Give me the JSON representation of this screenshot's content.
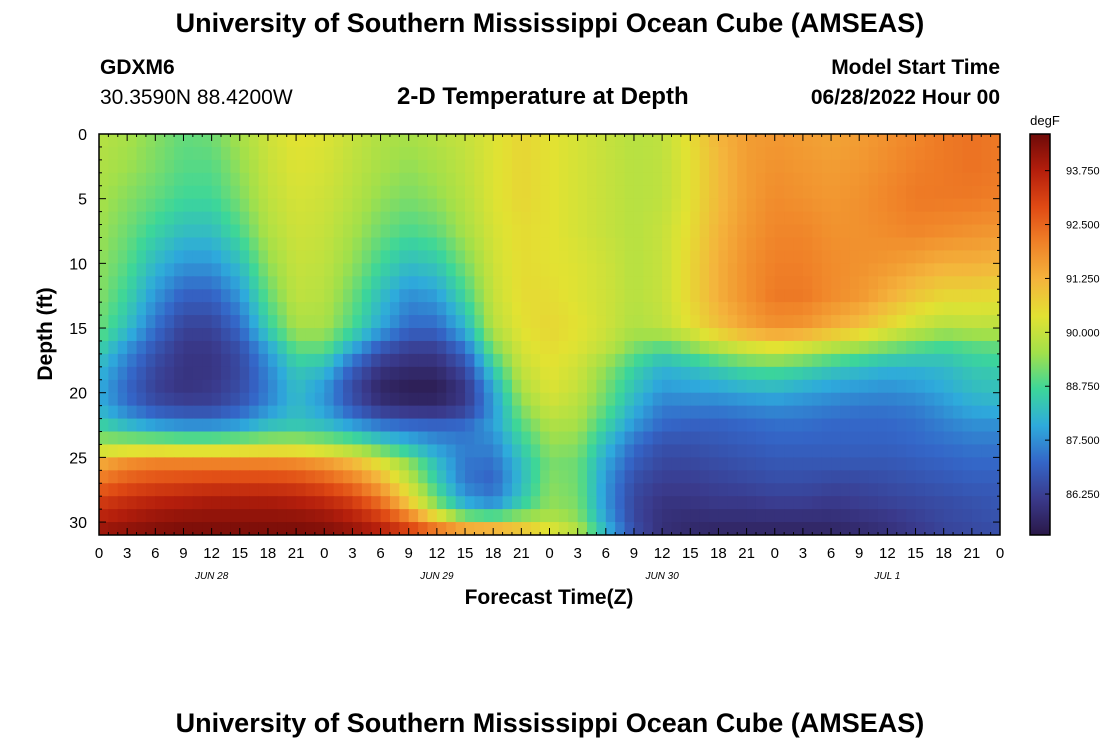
{
  "header": {
    "title": "University of Southern Mississippi Ocean Cube (AMSEAS)",
    "station_id": "GDXM6",
    "station_coords": "30.3590N  88.4200W",
    "subtitle": "2-D Temperature at Depth",
    "model_start_label": "Model Start Time",
    "model_start_value": "06/28/2022 Hour 00"
  },
  "footer": {
    "title": "University of Southern Mississippi Ocean Cube (AMSEAS)"
  },
  "chart_data": {
    "type": "heatmap",
    "title": "2-D Temperature at Depth",
    "xlabel": "Forecast Time(Z)",
    "ylabel": "Depth (ft)",
    "x_tick_labels": [
      "0",
      "3",
      "6",
      "9",
      "12",
      "15",
      "18",
      "21",
      "0",
      "3",
      "6",
      "9",
      "12",
      "15",
      "18",
      "21",
      "0",
      "3",
      "6",
      "9",
      "12",
      "15",
      "18",
      "21",
      "0",
      "3",
      "6",
      "9",
      "12",
      "15",
      "18",
      "21",
      "0"
    ],
    "x_day_labels": [
      "JUN 28",
      "JUN 29",
      "JUN 30",
      "JUL 1"
    ],
    "x_range_hours": [
      0,
      96
    ],
    "y_range_ft": [
      0,
      31
    ],
    "y_ticks": [
      0,
      5,
      10,
      15,
      20,
      25,
      30
    ],
    "colorbar": {
      "unit": "degF",
      "range": [
        85.3,
        94.6
      ],
      "tick_labels": [
        "93.750",
        "92.500",
        "91.250",
        "90.000",
        "88.750",
        "87.500",
        "86.250"
      ],
      "tick_values": [
        93.75,
        92.5,
        91.25,
        90.0,
        88.75,
        87.5,
        86.25
      ],
      "colors": [
        "#2a1848",
        "#3a3a8c",
        "#3466c8",
        "#2eaadc",
        "#3cd69a",
        "#a2e04a",
        "#e2e232",
        "#f4b43c",
        "#f08228",
        "#e04a14",
        "#b41e0c",
        "#6e0a08"
      ]
    },
    "depths_ft": [
      0,
      2.5,
      5,
      7.5,
      10,
      12.5,
      15,
      16.5,
      18,
      19.5,
      21,
      22.5,
      24,
      25.5,
      27,
      28.5,
      30,
      31
    ],
    "times_hr": [
      0,
      3,
      6,
      9,
      12,
      15,
      18,
      21,
      24,
      27,
      30,
      33,
      36,
      39,
      42,
      45,
      48,
      51,
      54,
      57,
      60,
      63,
      66,
      69,
      72,
      75,
      78,
      81,
      84,
      87,
      90,
      93,
      96
    ],
    "values_degF": [
      [
        89.8,
        89.6,
        89.3,
        89.0,
        89.1,
        89.6,
        90.1,
        90.4,
        90.3,
        90.0,
        89.7,
        89.6,
        89.8,
        90.0,
        90.3,
        90.6,
        90.4,
        90.2,
        90.0,
        89.8,
        89.9,
        90.5,
        91.2,
        91.6,
        91.7,
        91.6,
        91.5,
        91.6,
        91.8,
        92.0,
        92.2,
        92.3,
        92.2
      ],
      [
        89.7,
        89.5,
        89.2,
        88.9,
        88.9,
        89.4,
        90.0,
        90.3,
        90.2,
        89.9,
        89.6,
        89.4,
        89.6,
        89.9,
        90.3,
        90.6,
        90.4,
        90.2,
        90.0,
        89.8,
        89.9,
        90.4,
        91.1,
        91.6,
        91.8,
        91.7,
        91.6,
        91.7,
        91.9,
        92.1,
        92.2,
        92.3,
        92.2
      ],
      [
        89.6,
        89.3,
        89.0,
        88.7,
        88.7,
        89.2,
        89.9,
        90.2,
        90.1,
        89.8,
        89.4,
        89.2,
        89.4,
        89.8,
        90.3,
        90.6,
        90.4,
        90.2,
        90.0,
        89.8,
        89.9,
        90.4,
        91.1,
        91.6,
        91.9,
        91.8,
        91.7,
        91.8,
        92.0,
        92.2,
        92.2,
        92.2,
        92.1
      ],
      [
        89.5,
        89.1,
        88.6,
        88.2,
        88.2,
        88.8,
        89.7,
        90.1,
        90.0,
        89.6,
        89.1,
        88.8,
        89.0,
        89.6,
        90.2,
        90.5,
        90.4,
        90.2,
        90.0,
        89.8,
        90.0,
        90.5,
        91.2,
        91.7,
        92.0,
        92.0,
        91.8,
        91.8,
        91.9,
        92.0,
        91.9,
        91.8,
        91.7
      ],
      [
        89.4,
        88.9,
        88.1,
        87.6,
        87.6,
        88.2,
        89.4,
        90.0,
        89.9,
        89.4,
        88.7,
        88.2,
        88.4,
        89.2,
        90.1,
        90.5,
        90.4,
        90.3,
        90.1,
        89.8,
        90.0,
        90.6,
        91.3,
        91.8,
        92.1,
        92.1,
        91.9,
        91.8,
        91.7,
        91.5,
        91.3,
        91.3,
        91.2
      ],
      [
        89.3,
        88.6,
        87.6,
        86.9,
        86.9,
        87.6,
        89.0,
        89.9,
        89.8,
        89.1,
        88.2,
        87.5,
        87.7,
        88.7,
        90.0,
        90.5,
        90.5,
        90.3,
        90.1,
        89.8,
        90.0,
        90.6,
        91.3,
        91.8,
        92.2,
        92.2,
        91.9,
        91.7,
        91.3,
        90.9,
        90.6,
        90.6,
        90.5
      ],
      [
        89.1,
        88.2,
        87.1,
        86.3,
        86.3,
        87.0,
        88.5,
        89.6,
        89.6,
        88.8,
        87.8,
        87.0,
        87.0,
        88.0,
        89.8,
        90.4,
        90.6,
        90.4,
        90.1,
        89.7,
        89.9,
        90.4,
        91.0,
        91.5,
        91.8,
        91.7,
        91.3,
        91.0,
        90.5,
        90.0,
        89.7,
        89.8,
        89.8
      ],
      [
        88.6,
        87.6,
        86.7,
        86.1,
        86.1,
        86.6,
        87.8,
        89.0,
        89.0,
        87.9,
        86.8,
        86.3,
        86.3,
        87.2,
        89.2,
        90.2,
        90.5,
        90.3,
        89.9,
        89.2,
        88.9,
        89.3,
        89.8,
        90.2,
        90.4,
        90.2,
        89.8,
        89.5,
        89.2,
        88.9,
        88.7,
        88.9,
        89.0
      ],
      [
        88.1,
        87.2,
        86.4,
        86.0,
        86.0,
        86.4,
        87.4,
        88.4,
        88.2,
        86.9,
        86.0,
        85.8,
        85.8,
        86.5,
        88.5,
        90.0,
        90.4,
        90.1,
        89.4,
        88.6,
        88.0,
        88.2,
        88.5,
        88.8,
        88.9,
        88.7,
        88.4,
        88.2,
        88.0,
        88.0,
        88.1,
        88.4,
        88.5
      ],
      [
        87.9,
        87.0,
        86.3,
        86.0,
        86.1,
        86.5,
        87.3,
        88.2,
        87.7,
        86.5,
        85.7,
        85.5,
        85.5,
        86.1,
        87.9,
        89.7,
        90.3,
        90.0,
        89.2,
        88.3,
        87.7,
        87.8,
        87.9,
        88.1,
        88.2,
        88.0,
        87.8,
        87.7,
        87.6,
        87.7,
        87.9,
        88.2,
        88.3
      ],
      [
        87.9,
        87.1,
        86.5,
        86.3,
        86.3,
        86.7,
        87.4,
        88.1,
        87.6,
        86.6,
        85.9,
        85.7,
        85.7,
        86.1,
        87.6,
        89.3,
        90.1,
        89.8,
        89.0,
        88.0,
        87.3,
        87.3,
        87.3,
        87.4,
        87.5,
        87.4,
        87.3,
        87.2,
        87.2,
        87.3,
        87.6,
        87.9,
        88.0
      ],
      [
        88.6,
        88.1,
        87.7,
        87.5,
        87.5,
        87.7,
        88.2,
        88.4,
        88.2,
        87.7,
        87.2,
        87.0,
        86.9,
        87.0,
        87.7,
        88.9,
        89.7,
        89.6,
        88.6,
        87.6,
        87.0,
        86.9,
        86.9,
        87.0,
        87.1,
        87.1,
        87.0,
        87.0,
        87.0,
        87.1,
        87.3,
        87.5,
        87.5
      ],
      [
        89.6,
        89.6,
        89.6,
        89.5,
        89.5,
        89.6,
        89.7,
        89.7,
        89.5,
        89.2,
        88.6,
        88.1,
        87.6,
        87.3,
        87.4,
        88.5,
        89.4,
        89.3,
        88.1,
        87.1,
        86.6,
        86.6,
        86.7,
        86.8,
        86.9,
        86.9,
        86.9,
        86.9,
        86.9,
        87.0,
        87.1,
        87.2,
        87.2
      ],
      [
        91.4,
        91.9,
        92.1,
        92.1,
        92.1,
        92.1,
        92.1,
        92.0,
        91.7,
        91.2,
        90.4,
        89.4,
        88.2,
        87.2,
        87.1,
        88.2,
        89.2,
        89.1,
        87.8,
        86.8,
        86.4,
        86.4,
        86.5,
        86.6,
        86.7,
        86.7,
        86.7,
        86.7,
        86.7,
        86.8,
        86.9,
        87.0,
        87.0
      ],
      [
        92.4,
        92.8,
        93.0,
        93.1,
        93.2,
        93.2,
        93.2,
        93.1,
        92.8,
        92.3,
        91.4,
        90.0,
        88.5,
        87.2,
        86.9,
        88.1,
        89.3,
        89.1,
        87.6,
        86.5,
        86.2,
        86.2,
        86.3,
        86.4,
        86.5,
        86.5,
        86.4,
        86.4,
        86.5,
        86.6,
        86.7,
        86.8,
        86.8
      ],
      [
        93.2,
        93.5,
        93.7,
        93.8,
        93.9,
        93.9,
        93.9,
        93.8,
        93.6,
        93.2,
        92.4,
        90.9,
        89.2,
        87.9,
        87.5,
        88.5,
        89.4,
        89.2,
        87.6,
        86.4,
        86.0,
        86.0,
        86.1,
        86.1,
        86.2,
        86.2,
        86.1,
        86.2,
        86.3,
        86.4,
        86.5,
        86.6,
        86.7
      ],
      [
        93.8,
        94.0,
        94.2,
        94.3,
        94.3,
        94.3,
        94.3,
        94.3,
        94.2,
        93.9,
        93.4,
        92.5,
        91.0,
        89.6,
        89.4,
        89.7,
        89.8,
        89.4,
        87.8,
        86.4,
        85.9,
        85.8,
        85.8,
        85.8,
        85.8,
        85.8,
        85.8,
        85.9,
        86.0,
        86.2,
        86.4,
        86.5,
        86.6
      ],
      [
        94.2,
        94.3,
        94.4,
        94.5,
        94.5,
        94.5,
        94.5,
        94.5,
        94.4,
        94.2,
        93.9,
        93.5,
        93.2,
        93.1,
        93.0,
        92.0,
        90.8,
        90.0,
        88.2,
        86.6,
        85.9,
        85.7,
        85.6,
        85.6,
        85.6,
        85.6,
        85.6,
        85.7,
        85.9,
        86.1,
        86.3,
        86.4,
        86.5
      ]
    ]
  }
}
